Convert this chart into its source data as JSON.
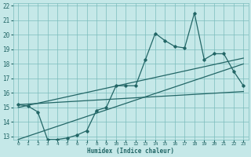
{
  "title": "",
  "xlabel": "Humidex (Indice chaleur)",
  "ylabel": "",
  "xlim": [
    -0.5,
    23.5
  ],
  "ylim": [
    12.8,
    22.2
  ],
  "yticks": [
    13,
    14,
    15,
    16,
    17,
    18,
    19,
    20,
    21,
    22
  ],
  "xticks": [
    0,
    1,
    2,
    3,
    4,
    5,
    6,
    7,
    8,
    9,
    10,
    11,
    12,
    13,
    14,
    15,
    16,
    17,
    18,
    19,
    20,
    21,
    22,
    23
  ],
  "bg_color": "#c5e8e8",
  "grid_color": "#7bbcbc",
  "line_color": "#226666",
  "curve_x": [
    0,
    1,
    2,
    3,
    4,
    5,
    6,
    7,
    8,
    9,
    10,
    11,
    12,
    13,
    14,
    15,
    16,
    17,
    18,
    19,
    20,
    21,
    22,
    23
  ],
  "curve_y": [
    15.2,
    15.1,
    14.7,
    12.8,
    12.8,
    12.9,
    13.1,
    13.4,
    14.8,
    15.0,
    16.5,
    16.5,
    16.5,
    18.3,
    20.1,
    19.6,
    19.2,
    19.1,
    21.5,
    18.3,
    18.7,
    18.7,
    17.5,
    16.5
  ],
  "line1_x": [
    0,
    23
  ],
  "line1_y": [
    15.2,
    16.1
  ],
  "line2_x": [
    0,
    23
  ],
  "line2_y": [
    15.0,
    18.4
  ],
  "line3_x": [
    0,
    23
  ],
  "line3_y": [
    12.8,
    18.0
  ]
}
